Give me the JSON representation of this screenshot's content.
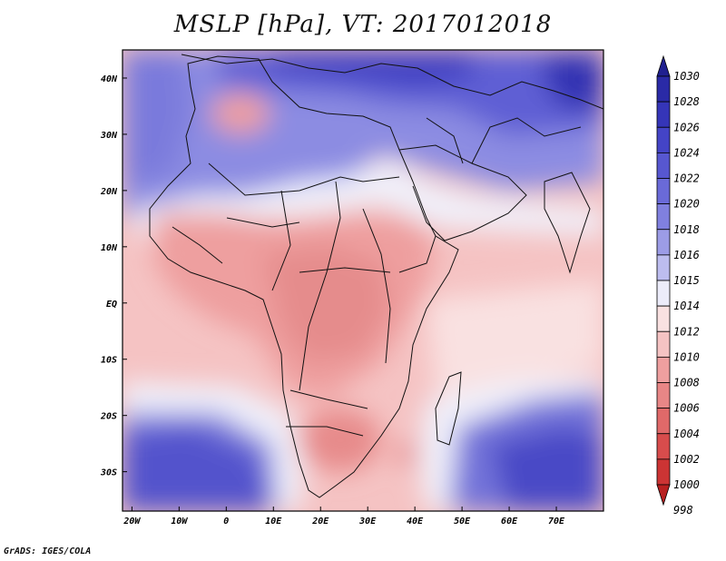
{
  "title": "MSLP [hPa], VT: 2017012018",
  "credit": "GrADS: IGES/COLA",
  "map": {
    "variable": "MSLP",
    "units": "hPa",
    "valid_time": "2017012018",
    "lon_range": [
      -22,
      80
    ],
    "lat_range": [
      -37,
      45
    ],
    "x_ticks": [
      "20W",
      "10W",
      "0",
      "10E",
      "20E",
      "30E",
      "40E",
      "50E",
      "60E",
      "70E"
    ],
    "y_ticks": [
      "40N",
      "30N",
      "20N",
      "10N",
      "EQ",
      "10S",
      "20S",
      "30S"
    ],
    "colorbar": {
      "levels": [
        "1030",
        "1028",
        "1026",
        "1024",
        "1022",
        "1020",
        "1018",
        "1016",
        "1015",
        "1014",
        "1012",
        "1010",
        "1008",
        "1006",
        "1004",
        "1002",
        "1000",
        "998"
      ],
      "colors": [
        "#202090",
        "#2a2aa6",
        "#3535b8",
        "#4444c6",
        "#5757d0",
        "#6a6ad8",
        "#8080df",
        "#9c9ce6",
        "#bdbdef",
        "#ececfa",
        "#f9e1e1",
        "#f5c3c3",
        "#ee9f9f",
        "#e88686",
        "#e06969",
        "#d84c4c",
        "#cc3434",
        "#b82020"
      ]
    },
    "pressure_features": [
      {
        "label": "low",
        "lon": 4,
        "lat": 32,
        "value": 1008
      },
      {
        "label": "low",
        "lon": 25,
        "lat": -25,
        "value": 1008
      },
      {
        "label": "low",
        "lon": 40,
        "lat": -28,
        "value": 1008
      },
      {
        "label": "low",
        "lon": 25,
        "lat": 5,
        "value": 1008
      },
      {
        "label": "high",
        "lon": 20,
        "lat": 42,
        "value": 1026
      },
      {
        "label": "high",
        "lon": 75,
        "lat": 38,
        "value": 1028
      },
      {
        "label": "high",
        "lon": 62,
        "lat": -35,
        "value": 1024
      },
      {
        "label": "high",
        "lon": -5,
        "lat": -34,
        "value": 1022
      },
      {
        "label": "high",
        "lon": -15,
        "lat": 35,
        "value": 1022
      }
    ]
  }
}
